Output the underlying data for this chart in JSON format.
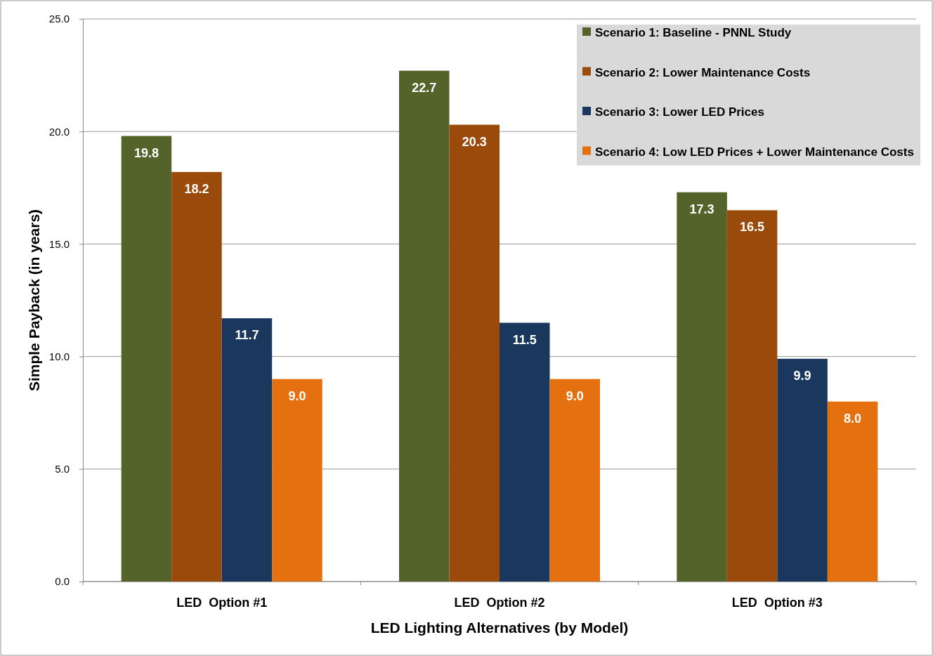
{
  "chart_data": {
    "type": "bar",
    "xlabel": "LED Lighting Alternatives (by Model)",
    "ylabel": "Simple Payback (in years)",
    "categories": [
      "LED  Option #1",
      "LED  Option #2",
      "LED  Option #3"
    ],
    "series": [
      {
        "name": "Scenario 1: Baseline - PNNL Study",
        "color": "#536329",
        "values": [
          19.8,
          22.7,
          17.3
        ],
        "value_labels": [
          "19.8",
          "22.7",
          "17.3"
        ]
      },
      {
        "name": "Scenario 2: Lower Maintenance Costs",
        "color": "#9a4a0a",
        "values": [
          18.2,
          20.3,
          16.5
        ],
        "value_labels": [
          "18.2",
          "20.3",
          "16.5"
        ]
      },
      {
        "name": "Scenario 3: Lower LED Prices",
        "color": "#1a375e",
        "values": [
          11.7,
          11.5,
          9.9
        ],
        "value_labels": [
          "11.7",
          "11.5",
          "9.9"
        ]
      },
      {
        "name": "Scenario 4: Low LED Prices + Lower Maintenance Costs",
        "color": "#e5700f",
        "values": [
          9.0,
          9.0,
          8.0
        ],
        "value_labels": [
          "9.0",
          "9.0",
          "8.0"
        ]
      }
    ],
    "ylim": [
      0,
      25
    ],
    "yticks": [
      {
        "value": 0,
        "label": "0.0"
      },
      {
        "value": 5,
        "label": "5.0"
      },
      {
        "value": 10,
        "label": "10.0"
      },
      {
        "value": 15,
        "label": "15.0"
      },
      {
        "value": 20,
        "label": "20.0"
      },
      {
        "value": 25,
        "label": "25.0"
      }
    ],
    "grid": "y",
    "legend": "top right"
  }
}
